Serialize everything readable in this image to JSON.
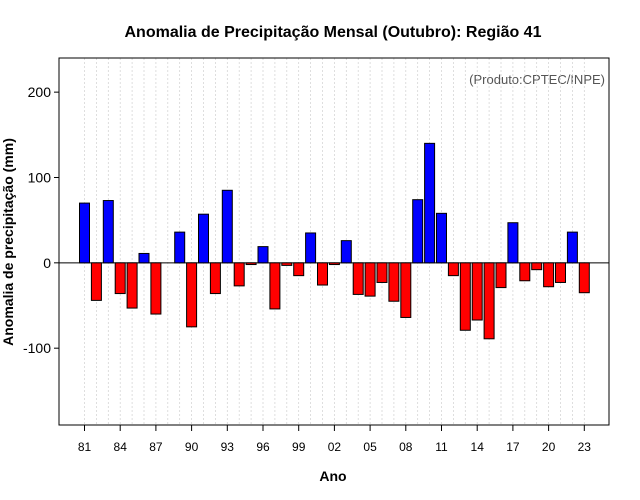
{
  "chart_data": {
    "type": "bar",
    "title": "Anomalia de Precipitação Mensal (Outubro): Região 41",
    "xlabel": "Ano",
    "ylabel": "Anomalia de precipitação (mm)",
    "credit": "(Produto:CPTEC/INPE)",
    "ylim": [
      -190,
      240
    ],
    "yticks": [
      -100,
      0,
      100,
      200
    ],
    "ytick_labels": [
      "-100",
      "0",
      "100",
      "200"
    ],
    "grid": true,
    "positive_color": "#0000ff",
    "negative_color": "#ff0000",
    "categories": [
      "1981",
      "1982",
      "1983",
      "1984",
      "1985",
      "1986",
      "1987",
      "1988",
      "1989",
      "1990",
      "1991",
      "1992",
      "1993",
      "1994",
      "1995",
      "1996",
      "1997",
      "1998",
      "1999",
      "2000",
      "2001",
      "2002",
      "2003",
      "2004",
      "2005",
      "2006",
      "2007",
      "2008",
      "2009",
      "2010",
      "2011",
      "2012",
      "2013",
      "2014",
      "2015",
      "2016",
      "2017",
      "2018",
      "2019",
      "2020",
      "2021",
      "2022",
      "2023"
    ],
    "values": [
      70,
      -44,
      73,
      -36,
      -53,
      11,
      -60,
      0,
      36,
      -75,
      57,
      -36,
      85,
      -27,
      -2,
      19,
      -54,
      -3,
      -15,
      35,
      -26,
      -2,
      26,
      -37,
      -39,
      -23,
      -45,
      -64,
      74,
      140,
      58,
      -15,
      -79,
      -67,
      -89,
      -29,
      47,
      -21,
      -8,
      -28,
      -23,
      36,
      -35
    ],
    "xtick_labels": [
      "81",
      "84",
      "87",
      "90",
      "93",
      "96",
      "99",
      "02",
      "05",
      "08",
      "11",
      "14",
      "17",
      "20",
      "23"
    ],
    "xtick_category_index": [
      0,
      3,
      6,
      9,
      12,
      15,
      18,
      21,
      24,
      27,
      30,
      33,
      36,
      39,
      42
    ]
  }
}
